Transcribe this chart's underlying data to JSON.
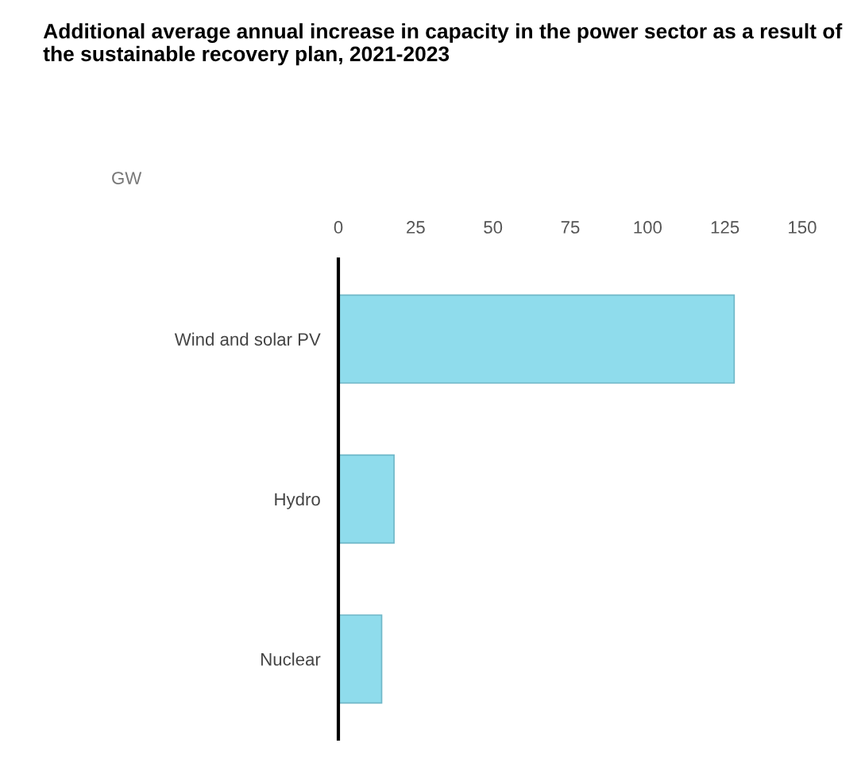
{
  "chart_data": {
    "type": "bar",
    "orientation": "horizontal",
    "title": "Additional average annual increase in capacity in the power sector as a result of the sustainable recovery plan, 2021-2023",
    "xlabel": "GW",
    "categories": [
      "Wind and solar PV",
      "Hydro",
      "Nuclear"
    ],
    "values": [
      128,
      18,
      14
    ],
    "color": "#8fdcec",
    "xlim": [
      0,
      150
    ],
    "xticks": [
      0,
      25,
      50,
      75,
      100,
      125,
      150
    ]
  }
}
